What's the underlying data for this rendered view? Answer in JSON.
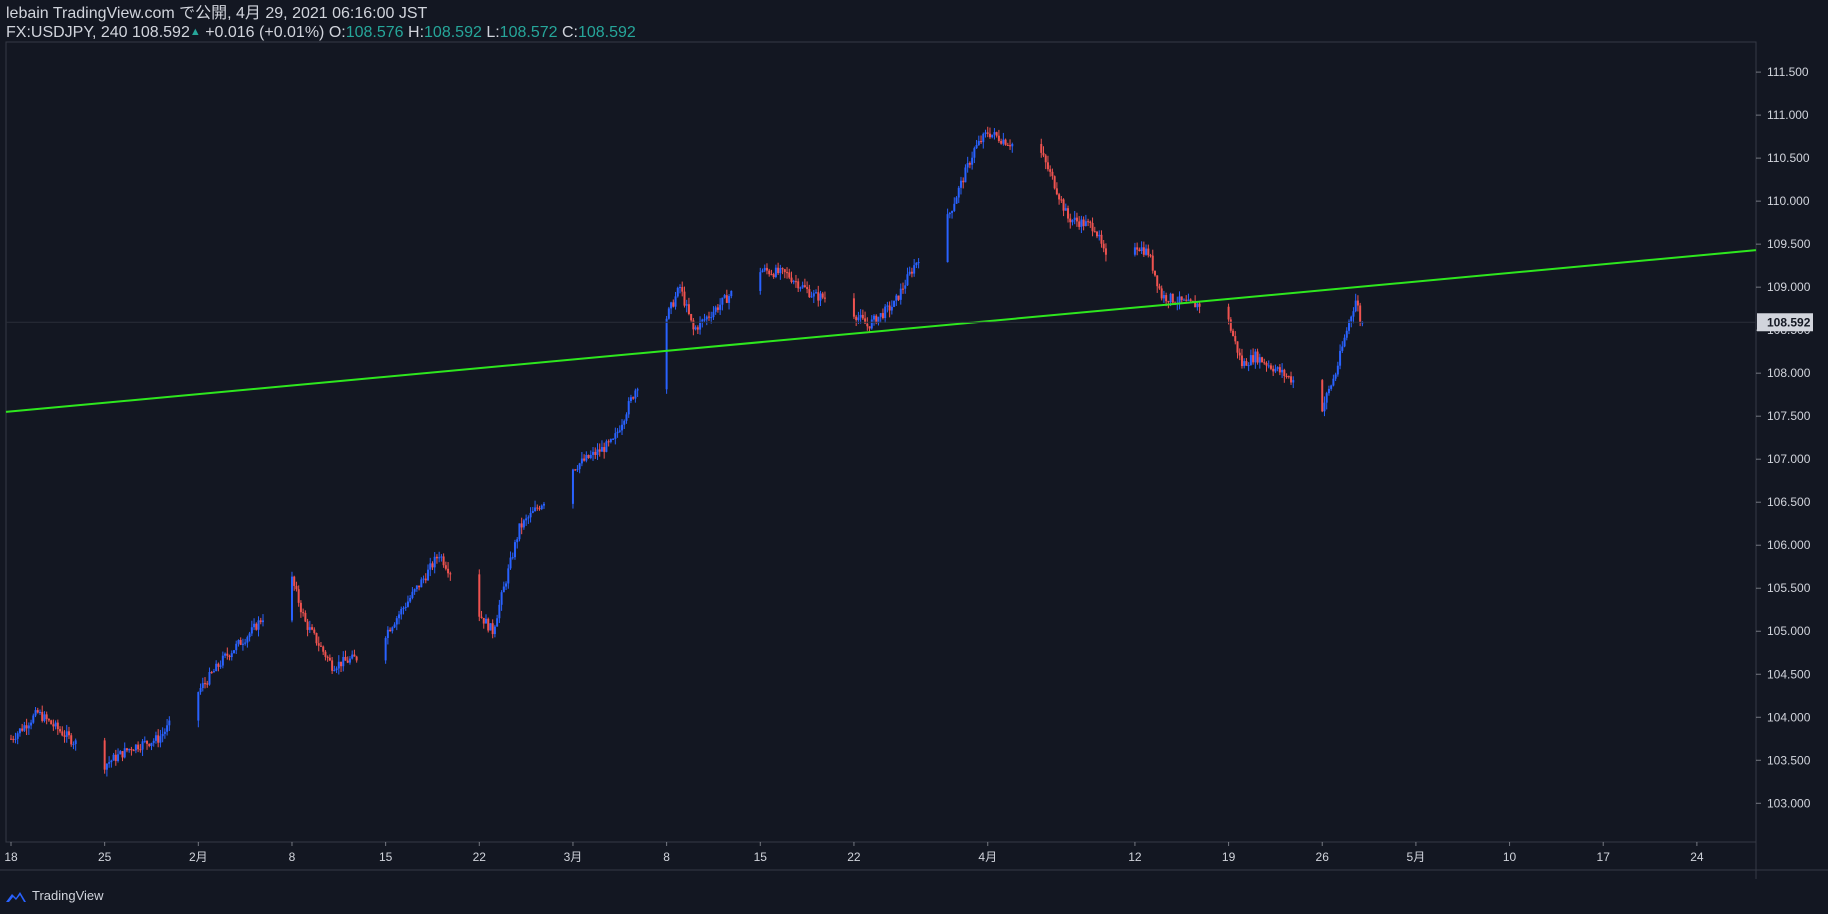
{
  "header": {
    "line1": "lebain TradingView.com で公開, 4月 29, 2021 06:16:00 JST",
    "symbol": "FX:USDJPY, 240",
    "last": "108.592",
    "up_arrow": "▲",
    "change": "+0.016 (+0.01%)",
    "o_label": "O:",
    "o_value": "108.576",
    "h_label": "H:",
    "h_value": "108.592",
    "l_label": "L:",
    "l_value": "108.572",
    "c_label": "C:",
    "c_value": "108.592"
  },
  "footer": {
    "brand": "TradingView",
    "logo_icon": "tradingview-logo-icon"
  },
  "colors": {
    "background": "#131722",
    "up": "#2962ff",
    "down": "#ef5350",
    "trendline": "#2ee81e",
    "axis_text": "#d1d4dc",
    "border": "#363a45",
    "price_label_bg": "#d1d4dc"
  },
  "chart_data": {
    "type": "candlestick",
    "interval": "240",
    "ylim": [
      102.55,
      111.85
    ],
    "y_ticks": [
      "103.000",
      "103.500",
      "104.000",
      "104.500",
      "105.000",
      "105.500",
      "106.000",
      "106.500",
      "107.000",
      "107.500",
      "108.000",
      "108.500",
      "109.000",
      "109.500",
      "110.000",
      "110.500",
      "111.000",
      "111.500"
    ],
    "x_tick_labels": [
      "18",
      "25",
      "2月",
      "8",
      "15",
      "22",
      "3月",
      "8",
      "15",
      "22",
      "4月",
      "12",
      "19",
      "26",
      "5月",
      "10",
      "17",
      "24"
    ],
    "current_price_label": "108.592",
    "close_path": [
      {
        "date": "2021-01-18",
        "close": 103.75
      },
      {
        "date": "2021-01-20",
        "close": 104.05
      },
      {
        "date": "2021-01-22",
        "close": 103.8
      },
      {
        "date": "2021-01-25",
        "close": 103.45
      },
      {
        "date": "2021-01-27",
        "close": 103.65
      },
      {
        "date": "2021-01-29",
        "close": 103.75
      },
      {
        "date": "2021-02-01",
        "close": 104.3
      },
      {
        "date": "2021-02-03",
        "close": 104.7
      },
      {
        "date": "2021-02-05",
        "close": 105.0
      },
      {
        "date": "2021-02-07",
        "close": 105.4
      },
      {
        "date": "2021-02-08",
        "close": 105.6
      },
      {
        "date": "2021-02-09",
        "close": 105.1
      },
      {
        "date": "2021-02-11",
        "close": 104.6
      },
      {
        "date": "2021-02-14",
        "close": 104.75
      },
      {
        "date": "2021-02-16",
        "close": 105.2
      },
      {
        "date": "2021-02-18",
        "close": 105.65
      },
      {
        "date": "2021-02-19",
        "close": 105.9
      },
      {
        "date": "2021-02-21",
        "close": 105.4
      },
      {
        "date": "2021-02-23",
        "close": 105.0
      },
      {
        "date": "2021-02-25",
        "close": 106.2
      },
      {
        "date": "2021-03-01",
        "close": 106.9
      },
      {
        "date": "2021-03-04",
        "close": 107.2
      },
      {
        "date": "2021-03-07",
        "close": 108.3
      },
      {
        "date": "2021-03-09",
        "close": 109.0
      },
      {
        "date": "2021-03-10",
        "close": 108.5
      },
      {
        "date": "2021-03-13",
        "close": 108.95
      },
      {
        "date": "2021-03-15",
        "close": 109.2
      },
      {
        "date": "2021-03-17",
        "close": 109.15
      },
      {
        "date": "2021-03-19",
        "close": 108.9
      },
      {
        "date": "2021-03-21",
        "close": 108.85
      },
      {
        "date": "2021-03-23",
        "close": 108.55
      },
      {
        "date": "2021-03-25",
        "close": 108.8
      },
      {
        "date": "2021-03-27",
        "close": 109.4
      },
      {
        "date": "2021-03-29",
        "close": 109.8
      },
      {
        "date": "2021-03-31",
        "close": 110.6
      },
      {
        "date": "2021-04-01",
        "close": 110.8
      },
      {
        "date": "2021-04-03",
        "close": 110.65
      },
      {
        "date": "2021-04-05",
        "close": 110.55
      },
      {
        "date": "2021-04-06",
        "close": 110.2
      },
      {
        "date": "2021-04-07",
        "close": 109.8
      },
      {
        "date": "2021-04-09",
        "close": 109.7
      },
      {
        "date": "2021-04-10",
        "close": 109.25
      },
      {
        "date": "2021-04-11",
        "close": 109.6
      },
      {
        "date": "2021-04-13",
        "close": 109.4
      },
      {
        "date": "2021-04-14",
        "close": 108.9
      },
      {
        "date": "2021-04-16",
        "close": 108.8
      },
      {
        "date": "2021-04-18",
        "close": 108.8
      },
      {
        "date": "2021-04-19",
        "close": 108.6
      },
      {
        "date": "2021-04-20",
        "close": 108.1
      },
      {
        "date": "2021-04-21",
        "close": 108.2
      },
      {
        "date": "2021-04-23",
        "close": 108.0
      },
      {
        "date": "2021-04-24",
        "close": 107.9
      },
      {
        "date": "2021-04-26",
        "close": 107.6
      },
      {
        "date": "2021-04-27",
        "close": 108.0
      },
      {
        "date": "2021-04-28",
        "close": 108.6
      },
      {
        "date": "2021-04-28T12:00",
        "close": 108.85
      },
      {
        "date": "2021-04-29",
        "close": 108.59
      }
    ],
    "trendline": {
      "start": {
        "date": "2021-01-18",
        "price": 107.55
      },
      "end": {
        "date": "2021-05-28",
        "price": 109.43
      }
    }
  }
}
